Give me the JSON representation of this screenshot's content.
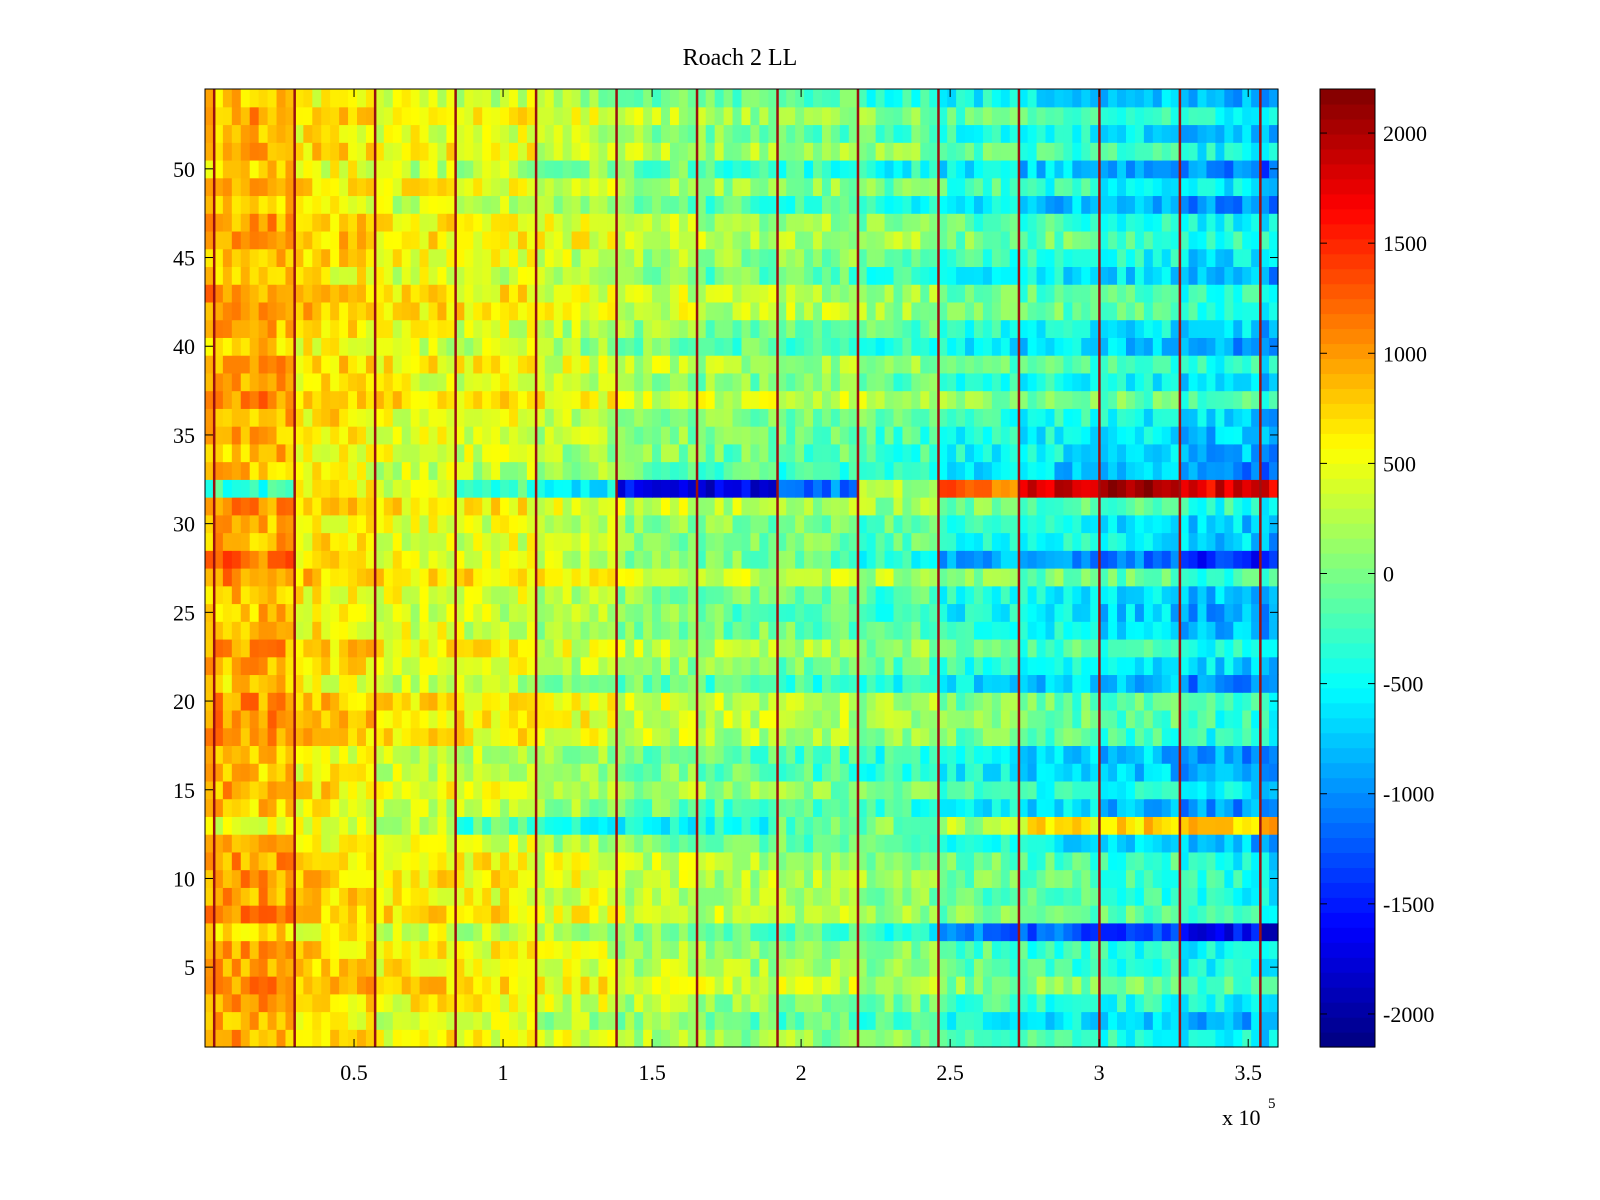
{
  "chart_data": {
    "type": "heatmap",
    "title": "Roach 2 LL",
    "xlabel": "",
    "ylabel": "",
    "x_range": [
      0,
      360000
    ],
    "y_range": [
      0.5,
      54.5
    ],
    "rows": 54,
    "x_ticks": [
      50000,
      100000,
      150000,
      200000,
      250000,
      300000,
      350000
    ],
    "x_tick_labels": [
      "0.5",
      "1",
      "1.5",
      "2",
      "2.5",
      "3",
      "3.5"
    ],
    "x_exponent_label": "x 10",
    "x_exponent_power": "5",
    "y_ticks": [
      5,
      10,
      15,
      20,
      25,
      30,
      35,
      40,
      45,
      50
    ],
    "y_tick_labels": [
      "5",
      "10",
      "15",
      "20",
      "25",
      "30",
      "35",
      "40",
      "45",
      "50"
    ],
    "colormap": "jet",
    "color_range": [
      -2150,
      2200
    ],
    "colorbar_ticks": [
      2000,
      1500,
      1000,
      500,
      0,
      -500,
      -1000,
      -1500,
      -2000
    ],
    "colorbar_tick_labels": [
      "2000",
      "1500",
      "1000",
      "500",
      "0",
      "-500",
      "-1000",
      "-1500",
      "-2000"
    ],
    "column_breaks_x": [
      3000,
      30000,
      57000,
      84000,
      111000,
      138000,
      165000,
      192000,
      219000,
      246000,
      273000,
      300000,
      327000,
      354000
    ],
    "segment_means": [
      900,
      650,
      500,
      450,
      300,
      150,
      50,
      0,
      -100,
      -300,
      -400,
      -500,
      -650,
      -800
    ],
    "anomaly_rows": [
      {
        "row": 32,
        "segment_means": [
          -300,
          600,
          400,
          -200,
          -600,
          -1600,
          -1700,
          -1100,
          200,
          1200,
          1900,
          2200,
          1800,
          1700
        ]
      },
      {
        "row": 13,
        "segment_means": [
          500,
          400,
          300,
          -200,
          -400,
          -500,
          -400,
          -100,
          0,
          200,
          600,
          700,
          800,
          800
        ]
      },
      {
        "row": 7,
        "segment_means": [
          800,
          600,
          400,
          300,
          200,
          0,
          -100,
          -200,
          -400,
          -1100,
          -1200,
          -1300,
          -1600,
          -1700
        ]
      },
      {
        "row": 28,
        "segment_means": [
          1200,
          700,
          500,
          400,
          300,
          100,
          0,
          -100,
          -400,
          -900,
          -1000,
          -1100,
          -1500,
          -1600
        ]
      }
    ]
  }
}
